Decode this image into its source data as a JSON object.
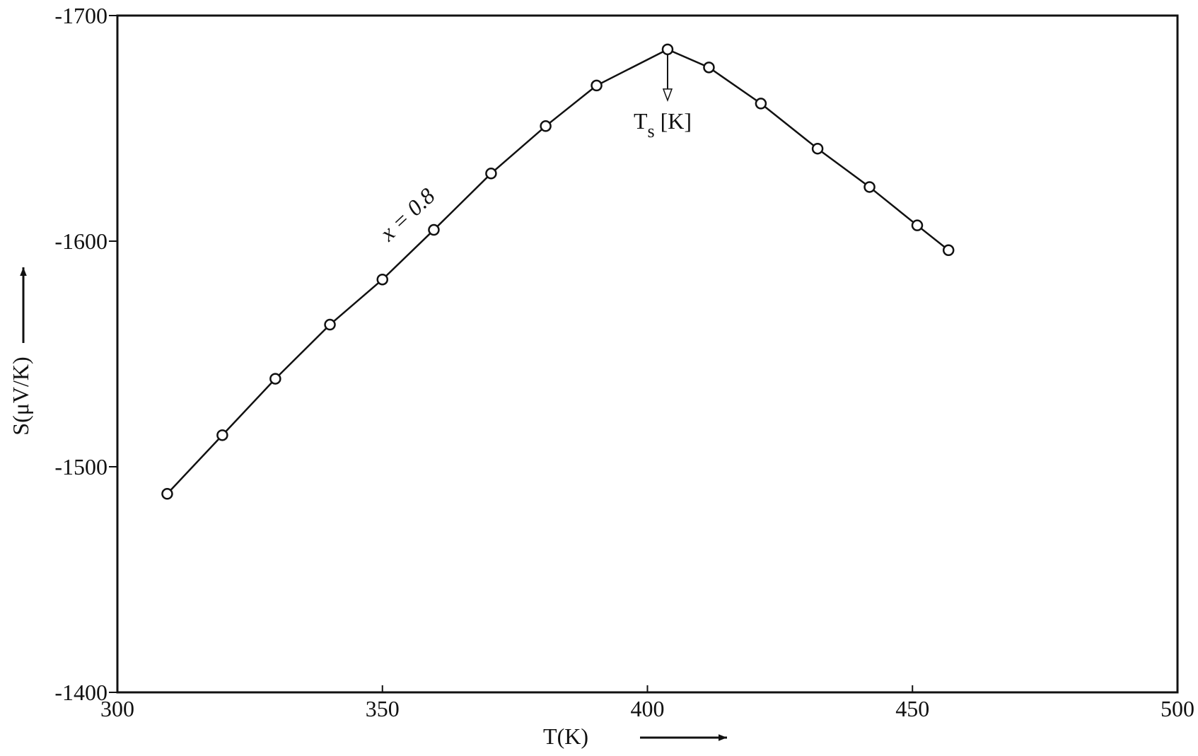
{
  "chart_data": {
    "type": "line",
    "x_label": "T(K)",
    "y_label": "S(μV/K)",
    "x": [
      309.4,
      319.8,
      329.8,
      340.1,
      350.0,
      359.7,
      370.5,
      380.8,
      390.4,
      403.8,
      411.6,
      421.4,
      432.1,
      441.9,
      450.9,
      456.8
    ],
    "series": [
      {
        "name": "x = 0.8",
        "color": "#111111",
        "values": [
          -1488,
          -1514,
          -1539,
          -1563,
          -1583,
          -1605,
          -1630,
          -1651,
          -1669,
          -1685,
          -1677,
          -1661,
          -1641,
          -1624,
          -1607,
          -1596
        ]
      }
    ],
    "xlim": [
      300,
      500
    ],
    "xticks": [
      300,
      350,
      400,
      450,
      500
    ],
    "ylim": [
      -1400,
      -1700
    ],
    "yticks": [
      -1700,
      -1600,
      -1500,
      -1400
    ],
    "grid": false,
    "peak_label": {
      "main": "T",
      "subscript": "s",
      "unit": "[K]"
    }
  }
}
